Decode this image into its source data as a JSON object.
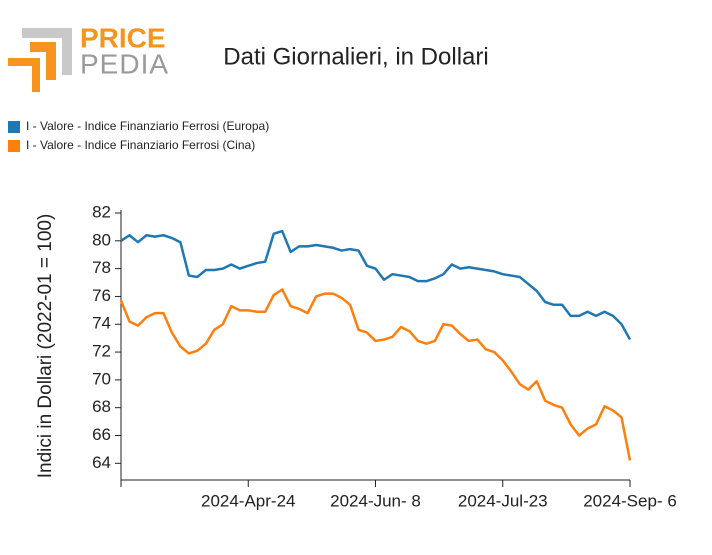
{
  "logo": {
    "top": "PRICE",
    "bottom": "PEDIA"
  },
  "chart_data": {
    "type": "line",
    "title": "Dati Giornalieri, in Dollari",
    "y_label": "Indici in Dollari (2022-01 = 100)",
    "x": [
      "2024-03-10",
      "2024-03-13",
      "2024-03-16",
      "2024-03-19",
      "2024-03-22",
      "2024-03-25",
      "2024-03-28",
      "2024-03-31",
      "2024-04-03",
      "2024-04-06",
      "2024-04-09",
      "2024-04-12",
      "2024-04-15",
      "2024-04-18",
      "2024-04-21",
      "2024-04-24",
      "2024-04-27",
      "2024-04-30",
      "2024-05-03",
      "2024-05-06",
      "2024-05-09",
      "2024-05-12",
      "2024-05-15",
      "2024-05-18",
      "2024-05-21",
      "2024-05-24",
      "2024-05-27",
      "2024-05-30",
      "2024-06-02",
      "2024-06-05",
      "2024-06-08",
      "2024-06-11",
      "2024-06-14",
      "2024-06-17",
      "2024-06-20",
      "2024-06-23",
      "2024-06-26",
      "2024-06-29",
      "2024-07-02",
      "2024-07-05",
      "2024-07-08",
      "2024-07-11",
      "2024-07-14",
      "2024-07-17",
      "2024-07-20",
      "2024-07-23",
      "2024-07-26",
      "2024-07-29",
      "2024-08-01",
      "2024-08-04",
      "2024-08-07",
      "2024-08-10",
      "2024-08-13",
      "2024-08-16",
      "2024-08-19",
      "2024-08-22",
      "2024-08-25",
      "2024-08-28",
      "2024-08-31",
      "2024-09-03",
      "2024-09-06"
    ],
    "series": [
      {
        "name": "I - Valore - Indice Finanziario Ferrosi (Europa)",
        "color": "#1f77b4",
        "values": [
          80.0,
          80.4,
          79.9,
          80.4,
          80.3,
          80.4,
          80.2,
          79.9,
          77.5,
          77.4,
          77.9,
          77.9,
          78.0,
          78.3,
          78.0,
          78.2,
          78.4,
          78.5,
          80.5,
          80.7,
          79.2,
          79.6,
          79.6,
          79.7,
          79.6,
          79.5,
          79.3,
          79.4,
          79.3,
          78.2,
          78.0,
          77.2,
          77.6,
          77.5,
          77.4,
          77.1,
          77.1,
          77.3,
          77.6,
          78.3,
          78.0,
          78.1,
          78.0,
          77.9,
          77.8,
          77.6,
          77.5,
          77.4,
          76.9,
          76.4,
          75.6,
          75.4,
          75.4,
          74.6,
          74.6,
          74.9,
          74.6,
          74.9,
          74.6,
          74.0,
          72.9
        ]
      },
      {
        "name": "I - Valore - Indice Finanziario Ferrosi (Cina)",
        "color": "#ff7f0e",
        "values": [
          75.7,
          74.2,
          73.9,
          74.5,
          74.8,
          74.8,
          73.4,
          72.4,
          71.9,
          72.1,
          72.6,
          73.6,
          74.0,
          75.3,
          75.0,
          75.0,
          74.9,
          74.9,
          76.1,
          76.5,
          75.3,
          75.1,
          74.8,
          76.0,
          76.2,
          76.2,
          75.9,
          75.4,
          73.6,
          73.4,
          72.8,
          72.9,
          73.1,
          73.8,
          73.5,
          72.8,
          72.6,
          72.8,
          74.0,
          73.9,
          73.3,
          72.8,
          72.9,
          72.2,
          72.0,
          71.4,
          70.6,
          69.7,
          69.3,
          69.9,
          68.5,
          68.2,
          68.0,
          66.8,
          66.0,
          66.5,
          66.8,
          68.1,
          67.8,
          67.3,
          64.2
        ]
      }
    ],
    "xlim": [
      "2024-03-10",
      "2024-09-06"
    ],
    "xticks": [
      {
        "value": "2024-04-24",
        "label": "2024-Apr-24"
      },
      {
        "value": "2024-06-08",
        "label": "2024-Jun- 8"
      },
      {
        "value": "2024-07-23",
        "label": "2024-Jul-23"
      },
      {
        "value": "2024-09-06",
        "label": "2024-Sep- 6"
      }
    ],
    "ylim": [
      62.8,
      82
    ],
    "yticks": [
      64,
      66,
      68,
      70,
      72,
      74,
      76,
      78,
      80,
      82
    ],
    "legend": "top-left"
  }
}
